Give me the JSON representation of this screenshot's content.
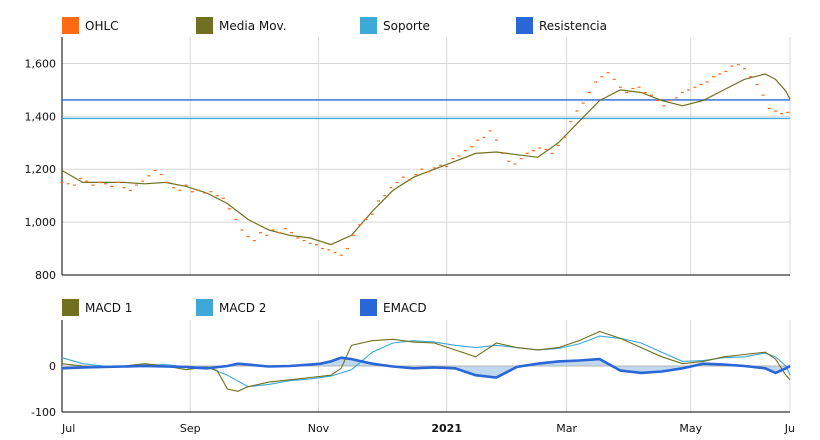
{
  "chart_data": [
    {
      "type": "line",
      "panel": "price",
      "legend": [
        {
          "name": "OHLC",
          "color": "#FF6A13"
        },
        {
          "name": "Media Mov.",
          "color": "#707020"
        },
        {
          "name": "Soporte",
          "color": "#3EA8D6"
        },
        {
          "name": "Resistencia",
          "color": "#2966D6"
        }
      ],
      "ylim": [
        800,
        1700
      ],
      "yticks": [
        "800",
        "1,000",
        "1,200",
        "1,400",
        "1,600"
      ],
      "grid": true,
      "support": 1392,
      "resistance": 1462,
      "ohlc_x": [
        0,
        3,
        6,
        9,
        12,
        15,
        18,
        21,
        24,
        27,
        30,
        33,
        36,
        39,
        42,
        45,
        48,
        51,
        54,
        57,
        60,
        63,
        66,
        69,
        72,
        75,
        78,
        81,
        84,
        87,
        90,
        93,
        96,
        99,
        102,
        105,
        108,
        111,
        114,
        117,
        120,
        123,
        126,
        129,
        132,
        135,
        138,
        141,
        144,
        147,
        150,
        153,
        156,
        159,
        162,
        165,
        168,
        171,
        174,
        177,
        180,
        183,
        186,
        189,
        192,
        195,
        198,
        201,
        204,
        207,
        210,
        213,
        216,
        219,
        222,
        225,
        228,
        231,
        234,
        237,
        240,
        243,
        246,
        249,
        252,
        255,
        258,
        261,
        264,
        267,
        270,
        273,
        276,
        279,
        282,
        285,
        288,
        291,
        294,
        297,
        300,
        303,
        306,
        309,
        312,
        315,
        318,
        321,
        324,
        327,
        330,
        333,
        336,
        339,
        342,
        345,
        348,
        351
      ],
      "ohlc_close": [
        1150,
        1145,
        1140,
        1165,
        1155,
        1140,
        1150,
        1145,
        1135,
        1150,
        1130,
        1120,
        1140,
        1155,
        1175,
        1195,
        1180,
        1150,
        1130,
        1120,
        1140,
        1115,
        1120,
        1110,
        1115,
        1100,
        1090,
        1050,
        1010,
        970,
        945,
        930,
        960,
        950,
        970,
        960,
        975,
        960,
        940,
        930,
        920,
        915,
        900,
        895,
        885,
        875,
        900,
        950,
        990,
        1010,
        1030,
        1080,
        1100,
        1130,
        1150,
        1170,
        1160,
        1180,
        1200,
        1190,
        1205,
        1215,
        1210,
        1240,
        1250,
        1270,
        1285,
        1310,
        1320,
        1345,
        1310,
        1260,
        1230,
        1220,
        1240,
        1260,
        1270,
        1280,
        1275,
        1260,
        1290,
        1320,
        1380,
        1420,
        1450,
        1490,
        1530,
        1550,
        1565,
        1540,
        1510,
        1490,
        1505,
        1510,
        1490,
        1480,
        1460,
        1440,
        1460,
        1470,
        1490,
        1500,
        1510,
        1520,
        1530,
        1550,
        1560,
        1570,
        1590,
        1595,
        1580,
        1550,
        1520,
        1480,
        1430,
        1420,
        1410,
        1415,
        1400,
        1420
      ],
      "ma_x": [
        0,
        10,
        20,
        30,
        40,
        50,
        60,
        70,
        80,
        85,
        90,
        100,
        110,
        120,
        130,
        140,
        150,
        160,
        170,
        180,
        190,
        200,
        210,
        220,
        230,
        240,
        250,
        260,
        270,
        280,
        290,
        300,
        310,
        320,
        330,
        340,
        345,
        350,
        352
      ],
      "ma_y": [
        1195,
        1150,
        1150,
        1150,
        1145,
        1150,
        1135,
        1110,
        1070,
        1040,
        1010,
        970,
        950,
        940,
        915,
        950,
        1040,
        1120,
        1170,
        1200,
        1230,
        1260,
        1265,
        1255,
        1245,
        1300,
        1380,
        1460,
        1500,
        1490,
        1460,
        1440,
        1460,
        1500,
        1540,
        1560,
        1540,
        1495,
        1465
      ]
    },
    {
      "type": "line",
      "panel": "macd",
      "legend": [
        {
          "name": "MACD 1",
          "color": "#707020"
        },
        {
          "name": "MACD 2",
          "color": "#3EA8D6"
        },
        {
          "name": "EMACD",
          "color": "#2966D6"
        }
      ],
      "ylim": [
        -100,
        100
      ],
      "yticks": [
        "-100",
        "0"
      ],
      "grid": true,
      "x_labels": [
        "Jul",
        "Sep",
        "Nov",
        "2021",
        "Mar",
        "May",
        "Ju"
      ],
      "x_label_positions": [
        0,
        62,
        124,
        186,
        244,
        304,
        352
      ],
      "bold_label": "2021",
      "macd1_x": [
        0,
        10,
        20,
        30,
        40,
        50,
        60,
        70,
        75,
        80,
        85,
        90,
        100,
        110,
        120,
        130,
        135,
        140,
        150,
        160,
        170,
        180,
        190,
        200,
        210,
        220,
        230,
        240,
        250,
        260,
        270,
        280,
        290,
        300,
        310,
        320,
        330,
        340,
        345,
        350,
        352
      ],
      "macd1_y": [
        5,
        0,
        -2,
        0,
        5,
        0,
        -8,
        -2,
        -10,
        -50,
        -55,
        -45,
        -35,
        -30,
        -25,
        -20,
        -5,
        45,
        55,
        58,
        52,
        50,
        35,
        20,
        50,
        40,
        35,
        40,
        55,
        75,
        60,
        40,
        20,
        5,
        10,
        20,
        25,
        30,
        15,
        -20,
        -30
      ],
      "macd2_x": [
        0,
        10,
        20,
        30,
        40,
        50,
        60,
        70,
        80,
        90,
        100,
        110,
        120,
        130,
        140,
        150,
        160,
        170,
        180,
        190,
        200,
        210,
        220,
        230,
        240,
        250,
        260,
        270,
        280,
        290,
        300,
        310,
        320,
        330,
        340,
        345,
        350,
        352
      ],
      "macd2_y": [
        18,
        5,
        0,
        0,
        2,
        3,
        -2,
        -2,
        -20,
        -45,
        -40,
        -32,
        -28,
        -22,
        -8,
        30,
        50,
        55,
        52,
        45,
        40,
        45,
        40,
        35,
        38,
        48,
        65,
        60,
        50,
        30,
        10,
        12,
        18,
        20,
        28,
        20,
        0,
        -20
      ],
      "emacd_x": [
        0,
        10,
        20,
        30,
        40,
        50,
        60,
        65,
        70,
        80,
        85,
        90,
        100,
        110,
        120,
        125,
        130,
        135,
        140,
        150,
        160,
        170,
        180,
        190,
        200,
        210,
        220,
        230,
        240,
        250,
        260,
        270,
        280,
        290,
        300,
        310,
        320,
        330,
        340,
        345,
        350,
        352
      ],
      "emacd_y": [
        -5,
        -3,
        -2,
        -1,
        0,
        -1,
        -2,
        -4,
        -5,
        0,
        5,
        3,
        -1,
        0,
        3,
        5,
        10,
        18,
        15,
        5,
        -1,
        -5,
        -3,
        -5,
        -20,
        -25,
        -2,
        5,
        10,
        12,
        15,
        -10,
        -15,
        -12,
        -5,
        5,
        3,
        0,
        -5,
        -15,
        -5,
        0
      ]
    }
  ]
}
